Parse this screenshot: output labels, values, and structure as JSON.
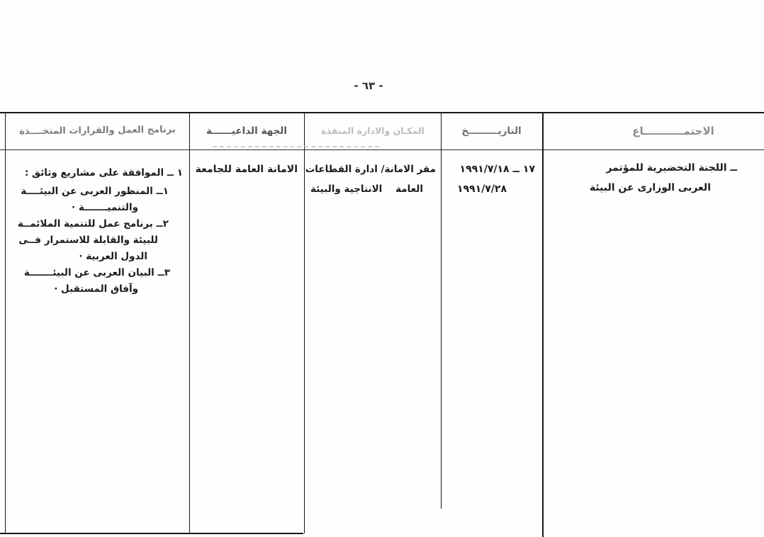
{
  "page": {
    "number": "- ٦٣ -"
  },
  "colors": {
    "paper": "#fefefe",
    "ink": "#1c1c1c",
    "faded_ink": "#8d8d8d"
  },
  "table": {
    "headers": {
      "meeting": "الاجتمـــــــــــاع",
      "date": "التاريـــــــــخ",
      "place": "المكـان والادارة المنفذة",
      "host": "الجهة الداعيــــــة",
      "program": "برنامج العمل والقرارات المتخــــذة"
    },
    "rows": [
      {
        "meeting_lines": [
          "ــ اللجنة التحضيرية للمؤتمر",
          "العربى الوزارى عن البيئة"
        ],
        "date_lines": [
          "١٧ ــ ١٩٩١/٧/١٨",
          "١٩٩١/٧/٢٨"
        ],
        "place_lines": [
          "مقر الامانة/ ادارة القطاعات",
          "العامة    الانتاجية والبيئة"
        ],
        "host_lines": [
          "الامانة العامة للجامعة"
        ],
        "program_lines": [
          "١ ــ الموافقة على مشاريع وثائق :",
          "١ــ المنظور العربى عن البيئــــة",
          "والتنميـــــــة ·",
          "٢ــ برنامج عمل للتنمية الملائمــة",
          "للبيئة والقابلة للاستمرار فــى",
          "الدول العربية ·",
          "٣ــ البيان العربى عن البيئـــــــة",
          "وآفاق المستقبل ·"
        ]
      }
    ]
  }
}
